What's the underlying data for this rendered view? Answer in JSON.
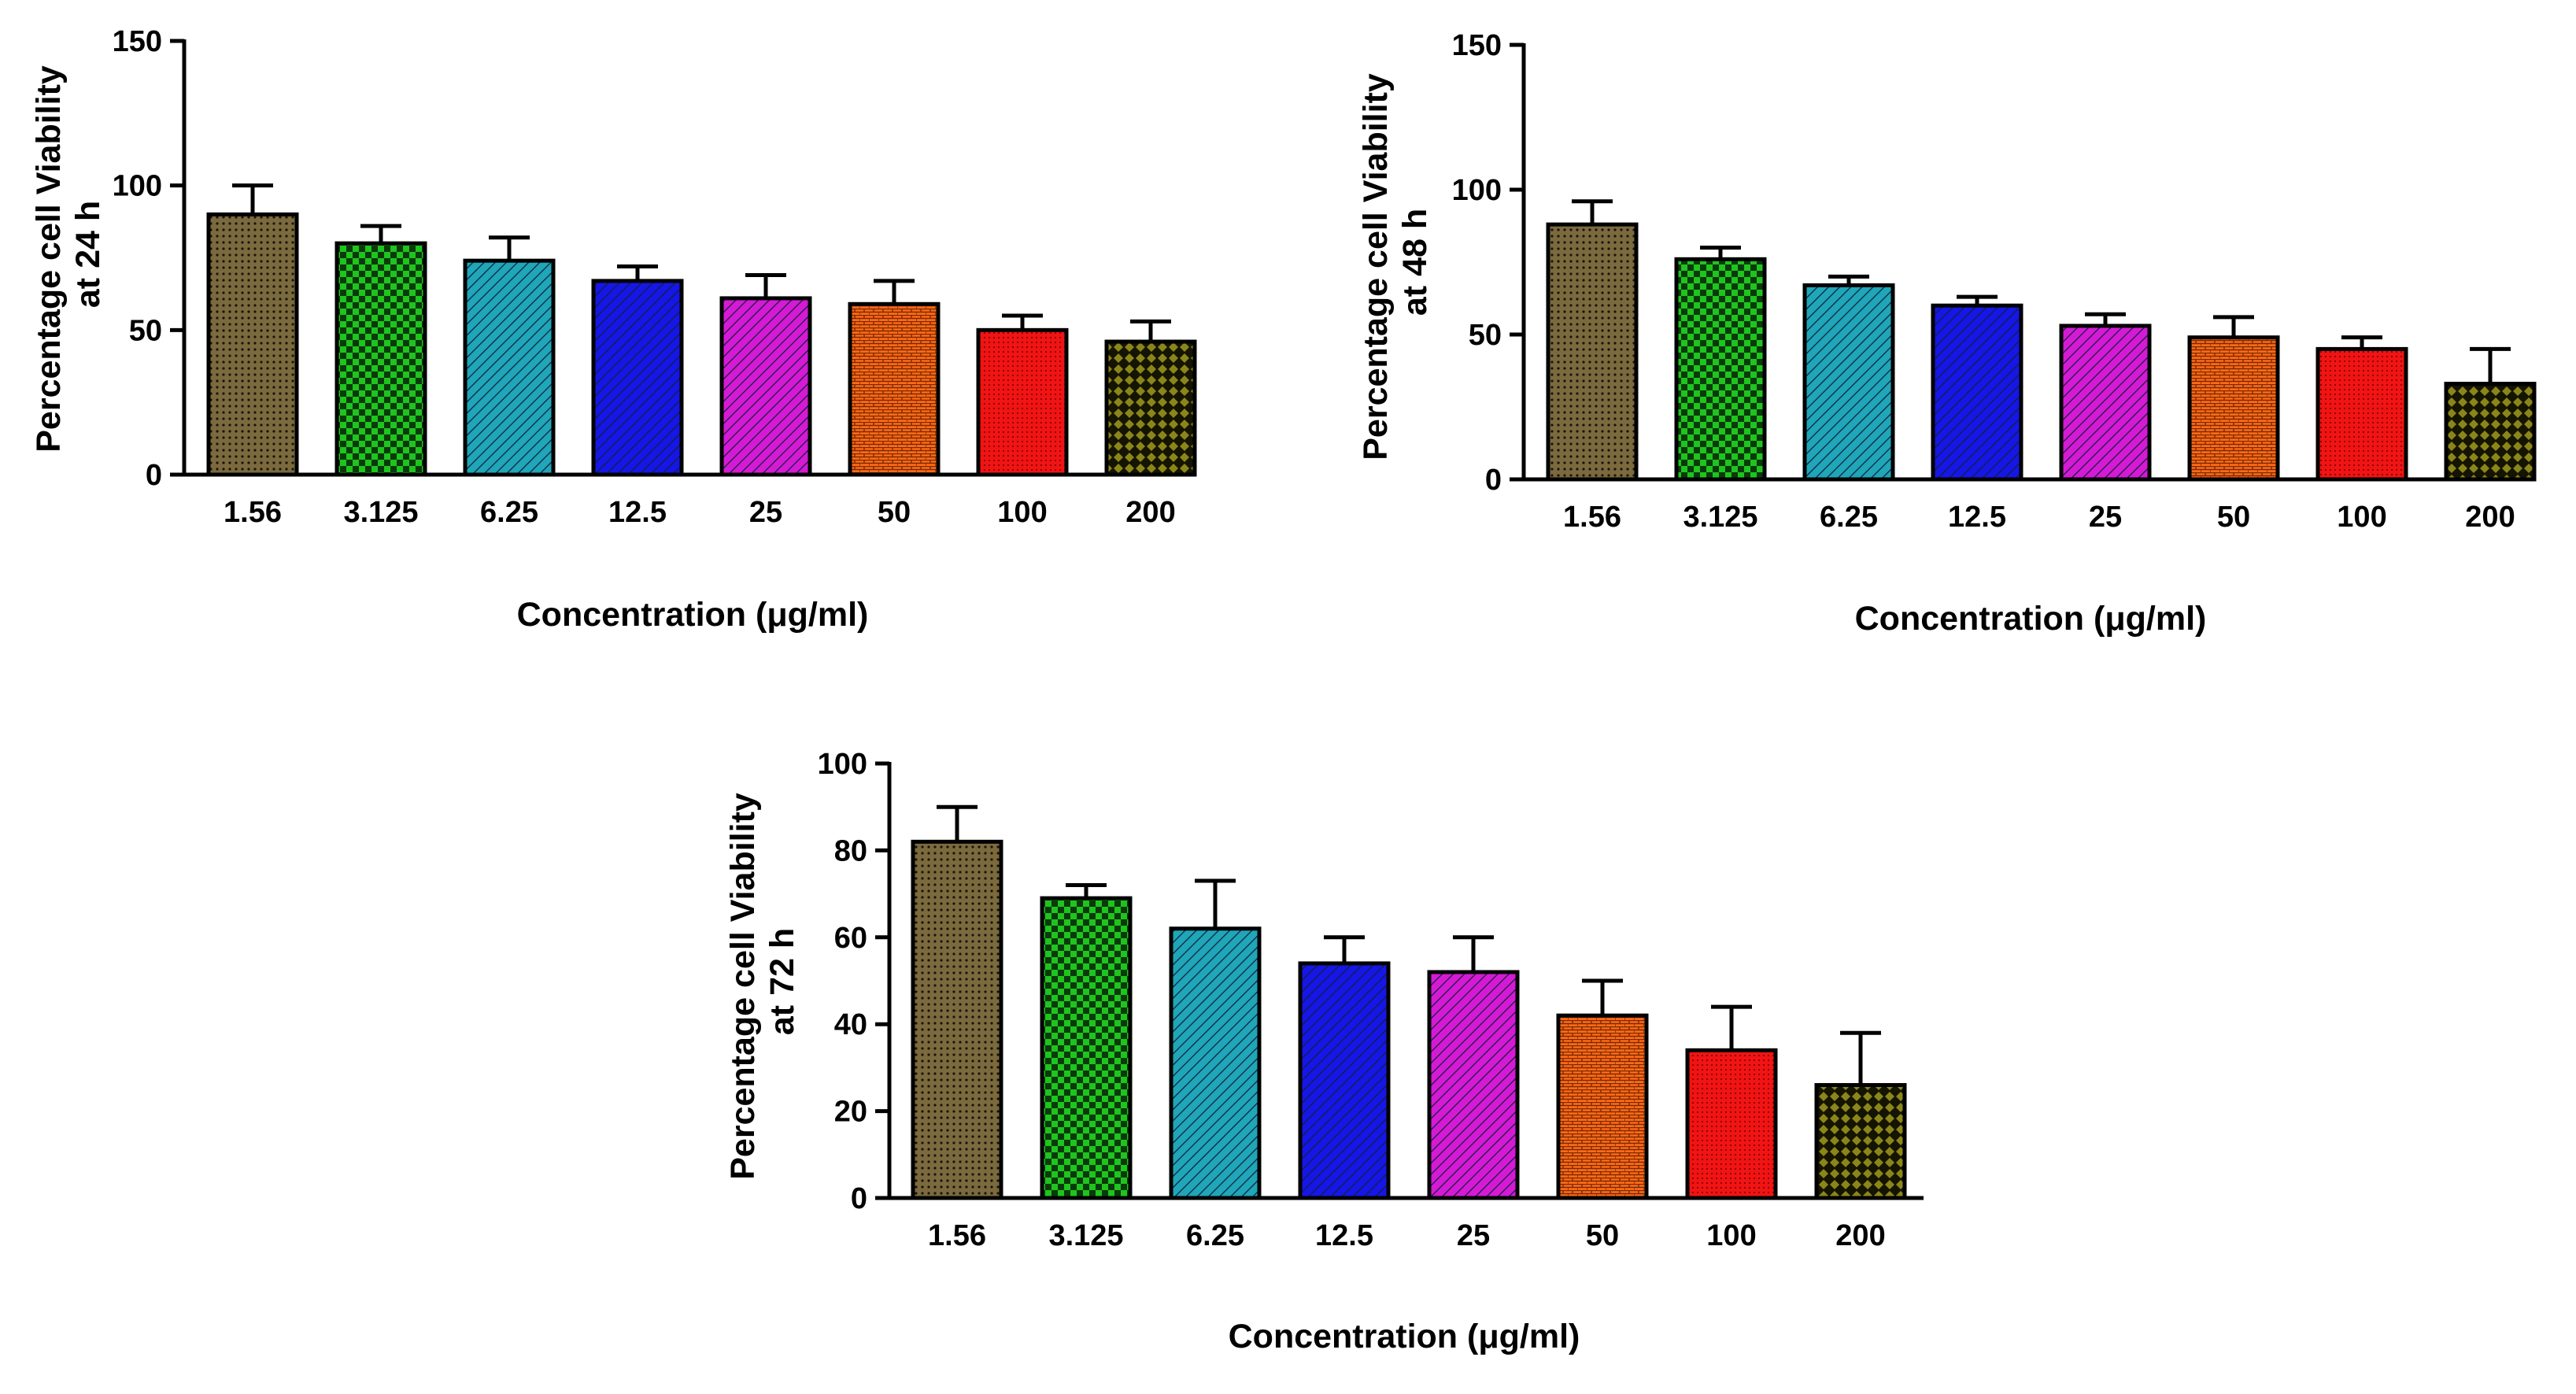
{
  "patterns": [
    {
      "id": "pat-0",
      "color": "#7a6a3e",
      "type": "dots"
    },
    {
      "id": "pat-1",
      "color": "#1fc41f",
      "type": "checker"
    },
    {
      "id": "pat-2",
      "color": "#1fa6b8",
      "type": "hatch"
    },
    {
      "id": "pat-3",
      "color": "#1616e6",
      "type": "hatch"
    },
    {
      "id": "pat-4",
      "color": "#d51ad5",
      "type": "hatch"
    },
    {
      "id": "pat-5",
      "color": "#ff6a18",
      "type": "brick"
    },
    {
      "id": "pat-6",
      "color": "#f01414",
      "type": "fine"
    },
    {
      "id": "pat-7",
      "color": "#8a861a",
      "type": "diamond"
    }
  ],
  "chart_data": [
    {
      "type": "bar",
      "title": "",
      "xlabel": "Concentration (μg/ml)",
      "ylabel_lines": [
        "Percentage cell Viability",
        "at 24 h"
      ],
      "ylim": [
        0,
        150
      ],
      "yticks": [
        0,
        50,
        100,
        150
      ],
      "categories": [
        "1.56",
        "3.125",
        "6.25",
        "12.5",
        "25",
        "50",
        "100",
        "200"
      ],
      "values": [
        90,
        80,
        74,
        67,
        61,
        59,
        50,
        46
      ],
      "errors": [
        10,
        6,
        8,
        5,
        8,
        8,
        5,
        7
      ]
    },
    {
      "type": "bar",
      "title": "",
      "xlabel": "Concentration (μg/ml)",
      "ylabel_lines": [
        "Percentage cell Viability",
        "at 48 h"
      ],
      "ylim": [
        0,
        150
      ],
      "yticks": [
        0,
        50,
        100,
        150
      ],
      "categories": [
        "1.56",
        "3.125",
        "6.25",
        "12.5",
        "25",
        "50",
        "100",
        "200"
      ],
      "values": [
        88,
        76,
        67,
        60,
        53,
        49,
        45,
        33
      ],
      "errors": [
        8,
        4,
        3,
        3,
        4,
        7,
        4,
        12
      ]
    },
    {
      "type": "bar",
      "title": "",
      "xlabel": "Concentration (μg/ml)",
      "ylabel_lines": [
        "Percentage cell Viability",
        "at 72 h"
      ],
      "ylim": [
        0,
        100
      ],
      "yticks": [
        0,
        20,
        40,
        60,
        80,
        100
      ],
      "categories": [
        "1.56",
        "3.125",
        "6.25",
        "12.5",
        "25",
        "50",
        "100",
        "200"
      ],
      "values": [
        82,
        69,
        62,
        54,
        52,
        42,
        34,
        26
      ],
      "errors": [
        8,
        3,
        11,
        6,
        8,
        8,
        10,
        12
      ]
    }
  ]
}
